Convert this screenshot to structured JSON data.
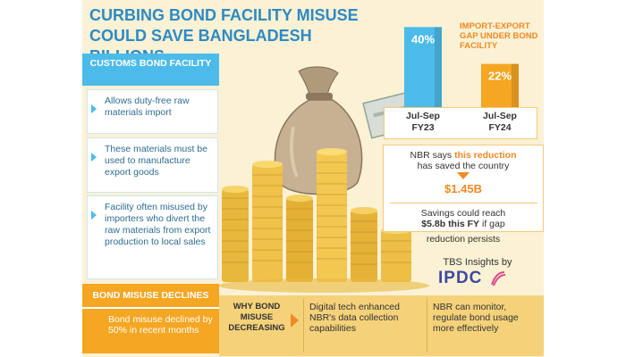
{
  "title": "CURBING BOND FACILITY MISUSE COULD SAVE BANGLADESH BILLIONS",
  "customs": {
    "header": "CUSTOMS BOND FACILITY",
    "items": [
      "Allows duty-free raw materials import",
      "These materials must be used to manufacture export goods",
      "Facility often misused by importers who divert the raw materials from export production to local sales"
    ]
  },
  "declines": {
    "header": "BOND MISUSE DECLINES",
    "text": "Bond misuse declined by 50% in recent months"
  },
  "chart_data": {
    "type": "bar",
    "title": "IMPORT-EXPORT GAP UNDER BOND FACILITY",
    "categories": [
      "Jul-Sep FY23",
      "Jul-Sep FY24"
    ],
    "category_lines": [
      [
        "Jul-Sep",
        "FY23"
      ],
      [
        "Jul-Sep",
        "FY24"
      ]
    ],
    "values": [
      40,
      22
    ],
    "value_labels": [
      "40%",
      "22%"
    ],
    "ylim": [
      0,
      48
    ],
    "colors": [
      "#4dbbea",
      "#f5a623"
    ]
  },
  "nbr": {
    "line1_prefix": "NBR says ",
    "line1_highlight": "this reduction",
    "line2": "has saved the country",
    "savings": "$1.45B",
    "line3": "Savings could reach",
    "line4_bold": "$5.8b this FY",
    "line4_rest": " if gap",
    "line5": "reduction persists"
  },
  "credit": {
    "tbs": "TBS Insights by",
    "logo": "IPDC"
  },
  "why": {
    "label": [
      "WHY BOND",
      "MISUSE",
      "DECREASING"
    ],
    "reason1": "Digital tech enhanced NBR's data collection capabilities",
    "reason2": "NBR can monitor, regulate bond usage more effectively"
  },
  "colors": {
    "background": "#fbf1d4",
    "title_blue": "#2d8ac4",
    "header_blue": "#4dbbea",
    "accent_orange": "#f08a24",
    "bar_orange": "#f5a623",
    "strip_yellow": "#f5d27a"
  }
}
